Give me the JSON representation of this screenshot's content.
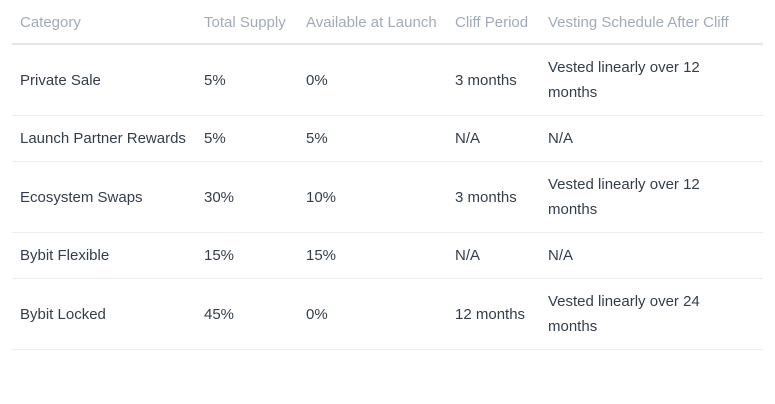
{
  "table": {
    "name": "token-vesting-schedule",
    "columns": [
      {
        "key": "category",
        "label": "Category"
      },
      {
        "key": "total_supply",
        "label": "Total Supply"
      },
      {
        "key": "available_at_launch",
        "label": "Available at Launch"
      },
      {
        "key": "cliff_period",
        "label": "Cliff Period"
      },
      {
        "key": "vesting_schedule",
        "label": "Vesting Schedule After Cliff"
      }
    ],
    "rows": [
      {
        "category": "Private Sale",
        "total_supply": "5%",
        "available_at_launch": "0%",
        "cliff_period": "3 months",
        "vesting_schedule": "Vested linearly over 12 months"
      },
      {
        "category": "Launch Partner Rewards",
        "total_supply": "5%",
        "available_at_launch": "5%",
        "cliff_period": "N/A",
        "vesting_schedule": "N/A"
      },
      {
        "category": "Ecosystem Swaps",
        "total_supply": "30%",
        "available_at_launch": "10%",
        "cliff_period": "3 months",
        "vesting_schedule": "Vested linearly over 12 months"
      },
      {
        "category": "Bybit Flexible",
        "total_supply": "15%",
        "available_at_launch": "15%",
        "cliff_period": "N/A",
        "vesting_schedule": "N/A"
      },
      {
        "category": "Bybit Locked",
        "total_supply": "45%",
        "available_at_launch": "0%",
        "cliff_period": "12 months",
        "vesting_schedule": "Vested linearly over 24 months"
      }
    ],
    "colors": {
      "background": "#ffffff",
      "header_text": "#a1abb8",
      "body_text": "#333e4a",
      "header_divider": "#e3e6ea",
      "row_divider": "#ebedf1"
    }
  }
}
